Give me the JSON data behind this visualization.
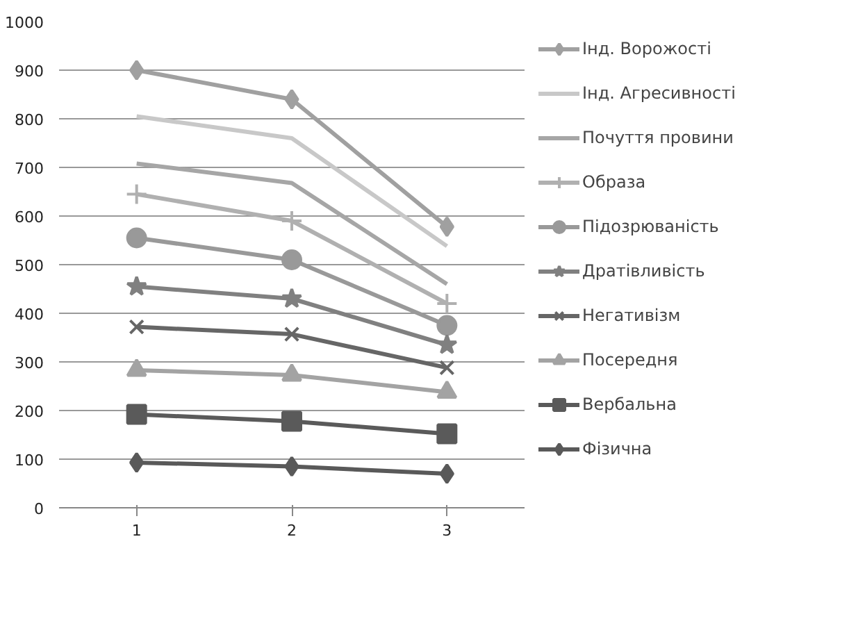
{
  "chart_data": {
    "type": "line",
    "categories": [
      "1",
      "2",
      "3"
    ],
    "series": [
      {
        "name": "Інд. Ворожості",
        "color": "#a0a0a0",
        "marker": "diamond",
        "values": [
          900,
          840,
          578
        ]
      },
      {
        "name": "Інд. Агресивності",
        "color": "#c8c8c8",
        "marker": "none",
        "values": [
          805,
          760,
          538
        ]
      },
      {
        "name": "Почуття провини",
        "color": "#a6a6a6",
        "marker": "none",
        "values": [
          708,
          668,
          460
        ]
      },
      {
        "name": "Образа",
        "color": "#b0b0b0",
        "marker": "cross",
        "values": [
          645,
          590,
          420
        ]
      },
      {
        "name": "Підозрюваність",
        "color": "#999999",
        "marker": "circle",
        "values": [
          555,
          510,
          375
        ]
      },
      {
        "name": "Дратівливість",
        "color": "#808080",
        "marker": "star",
        "values": [
          455,
          430,
          335
        ]
      },
      {
        "name": "Негативізм",
        "color": "#666666",
        "marker": "x",
        "values": [
          372,
          357,
          288
        ]
      },
      {
        "name": "Посередня",
        "color": "#a3a3a3",
        "marker": "triangle",
        "values": [
          283,
          273,
          238
        ]
      },
      {
        "name": "Вербальна",
        "color": "#5a5a5a",
        "marker": "square",
        "values": [
          192,
          178,
          152
        ]
      },
      {
        "name": "Фізична",
        "color": "#595959",
        "marker": "diamond",
        "values": [
          93,
          85,
          70
        ]
      }
    ],
    "ylim": [
      0,
      1000
    ],
    "yticks": [
      0,
      100,
      200,
      300,
      400,
      500,
      600,
      700,
      800,
      900,
      1000
    ],
    "grid": "y",
    "legend": "right",
    "line_style": "solid"
  }
}
